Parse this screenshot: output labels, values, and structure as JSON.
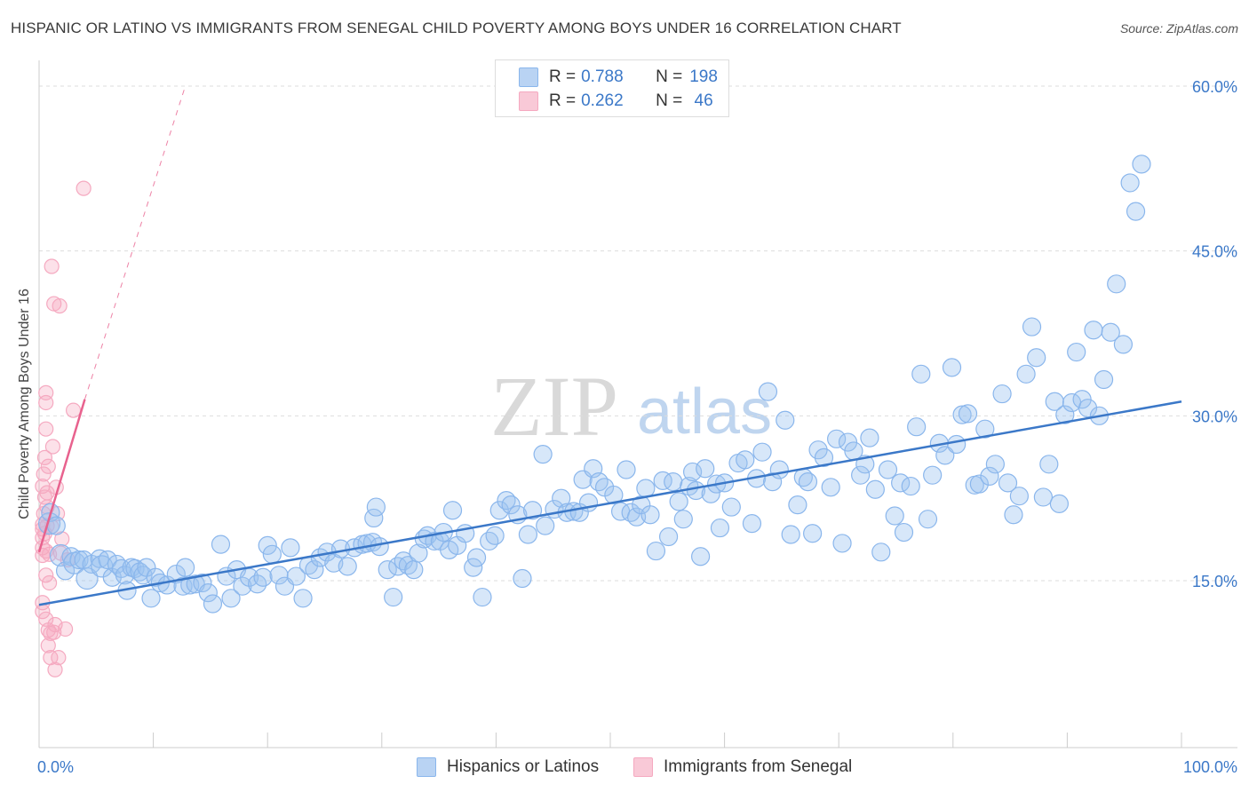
{
  "title": "HISPANIC OR LATINO VS IMMIGRANTS FROM SENEGAL CHILD POVERTY AMONG BOYS UNDER 16 CORRELATION CHART",
  "source": "Source: ZipAtlas.com",
  "watermark": {
    "zip": "ZIP",
    "atlas": "atlas"
  },
  "legend": {
    "rows": [
      {
        "r_label": "R = ",
        "r_value": "0.788",
        "n_label": "N = ",
        "n_value": "198",
        "color": "#8ab6ec"
      },
      {
        "r_label": "R = ",
        "r_value": "0.262",
        "n_label": "N = ",
        "n_value": " 46",
        "color": "#f5a9c0"
      }
    ]
  },
  "bottom_legend": {
    "blue": "Hispanics or Latinos",
    "pink": "Immigrants from Senegal"
  },
  "colors": {
    "blue": "#3b78c8",
    "blue_fill": "#9cc3f0",
    "pink": "#e8628e",
    "pink_fill": "#f5a9c0",
    "axis_label": "#3b78c8",
    "grid": "#dddddd"
  },
  "chart_data": {
    "type": "scatter",
    "title": "HISPANIC OR LATINO VS IMMIGRANTS FROM SENEGAL CHILD POVERTY AMONG BOYS UNDER 16 CORRELATION CHART",
    "xlabel": "",
    "ylabel": "Child Poverty Among Boys Under 16",
    "xlim": [
      0,
      100
    ],
    "ylim": [
      0,
      60
    ],
    "x_tick_labels": [
      "0.0%",
      "100.0%"
    ],
    "y_ticks": [
      15,
      30,
      45,
      60
    ],
    "y_tick_labels": [
      "15.0%",
      "30.0%",
      "45.0%",
      "60.0%"
    ],
    "grid": "horizontal dashed",
    "legend_placement": "top-center",
    "series": [
      {
        "name": "Hispanics or Latinos",
        "R": 0.788,
        "N": 198,
        "trend": {
          "x": [
            0,
            100
          ],
          "y": [
            12.8,
            31.3
          ]
        },
        "points": [
          [
            0.9,
            20.2
          ],
          [
            1.0,
            21.2
          ],
          [
            1.5,
            20.0
          ],
          [
            1.9,
            17.3
          ],
          [
            2.3,
            15.9
          ],
          [
            2.8,
            17.2
          ],
          [
            3.1,
            16.6
          ],
          [
            3.5,
            16.9
          ],
          [
            3.9,
            16.9
          ],
          [
            4.2,
            15.2
          ],
          [
            4.6,
            16.5
          ],
          [
            5.3,
            17.0
          ],
          [
            5.5,
            16.3
          ],
          [
            6.0,
            16.9
          ],
          [
            6.4,
            15.3
          ],
          [
            6.8,
            16.5
          ],
          [
            7.2,
            16.1
          ],
          [
            7.5,
            15.5
          ],
          [
            7.7,
            14.1
          ],
          [
            8.1,
            16.2
          ],
          [
            8.4,
            16.1
          ],
          [
            8.8,
            15.8
          ],
          [
            9.1,
            15.5
          ],
          [
            9.4,
            16.2
          ],
          [
            9.8,
            13.4
          ],
          [
            10.2,
            15.3
          ],
          [
            10.6,
            14.8
          ],
          [
            11.2,
            14.6
          ],
          [
            12.0,
            15.6
          ],
          [
            12.6,
            14.5
          ],
          [
            12.8,
            16.2
          ],
          [
            13.2,
            14.6
          ],
          [
            13.7,
            14.7
          ],
          [
            14.3,
            14.8
          ],
          [
            14.8,
            13.9
          ],
          [
            15.2,
            12.9
          ],
          [
            15.9,
            18.3
          ],
          [
            16.4,
            15.4
          ],
          [
            16.8,
            13.4
          ],
          [
            17.3,
            16.0
          ],
          [
            17.8,
            14.5
          ],
          [
            18.4,
            15.3
          ],
          [
            19.1,
            14.7
          ],
          [
            19.6,
            15.3
          ],
          [
            20.0,
            18.2
          ],
          [
            20.4,
            17.4
          ],
          [
            21.0,
            15.5
          ],
          [
            21.5,
            14.5
          ],
          [
            22.0,
            18.0
          ],
          [
            22.5,
            15.4
          ],
          [
            23.1,
            13.4
          ],
          [
            23.6,
            16.4
          ],
          [
            24.1,
            16.0
          ],
          [
            24.6,
            17.1
          ],
          [
            25.2,
            17.6
          ],
          [
            25.8,
            16.6
          ],
          [
            26.4,
            17.9
          ],
          [
            27.0,
            16.3
          ],
          [
            27.6,
            18.0
          ],
          [
            28.3,
            18.3
          ],
          [
            28.7,
            18.4
          ],
          [
            29.2,
            18.5
          ],
          [
            29.3,
            20.7
          ],
          [
            29.5,
            21.7
          ],
          [
            29.8,
            18.1
          ],
          [
            30.5,
            16.0
          ],
          [
            31.0,
            13.5
          ],
          [
            31.4,
            16.3
          ],
          [
            31.9,
            16.8
          ],
          [
            32.3,
            16.4
          ],
          [
            32.8,
            16.0
          ],
          [
            33.2,
            17.5
          ],
          [
            33.7,
            18.8
          ],
          [
            34.0,
            19.1
          ],
          [
            34.6,
            18.6
          ],
          [
            35.1,
            18.6
          ],
          [
            35.4,
            19.4
          ],
          [
            35.9,
            17.8
          ],
          [
            36.2,
            21.4
          ],
          [
            36.6,
            18.2
          ],
          [
            37.3,
            19.3
          ],
          [
            38.0,
            16.2
          ],
          [
            38.3,
            17.1
          ],
          [
            38.8,
            13.5
          ],
          [
            39.4,
            18.6
          ],
          [
            39.9,
            19.1
          ],
          [
            40.3,
            21.4
          ],
          [
            40.9,
            22.3
          ],
          [
            41.3,
            21.9
          ],
          [
            41.9,
            21.0
          ],
          [
            42.3,
            15.2
          ],
          [
            42.8,
            19.2
          ],
          [
            43.2,
            21.4
          ],
          [
            44.1,
            26.5
          ],
          [
            44.3,
            20.0
          ],
          [
            45.1,
            21.5
          ],
          [
            45.7,
            22.5
          ],
          [
            46.2,
            21.2
          ],
          [
            46.8,
            21.3
          ],
          [
            47.3,
            21.2
          ],
          [
            47.6,
            24.2
          ],
          [
            48.1,
            22.1
          ],
          [
            48.5,
            25.2
          ],
          [
            49.0,
            24.0
          ],
          [
            49.5,
            23.5
          ],
          [
            50.3,
            22.8
          ],
          [
            50.9,
            21.3
          ],
          [
            51.4,
            25.1
          ],
          [
            51.8,
            21.2
          ],
          [
            52.3,
            20.8
          ],
          [
            52.7,
            21.9
          ],
          [
            53.1,
            23.4
          ],
          [
            53.5,
            21.0
          ],
          [
            54.0,
            17.7
          ],
          [
            54.6,
            24.1
          ],
          [
            55.1,
            19.0
          ],
          [
            55.5,
            24.0
          ],
          [
            56.0,
            22.2
          ],
          [
            56.4,
            20.6
          ],
          [
            56.9,
            23.6
          ],
          [
            57.2,
            24.9
          ],
          [
            57.5,
            23.2
          ],
          [
            57.9,
            17.2
          ],
          [
            58.3,
            25.2
          ],
          [
            58.8,
            22.9
          ],
          [
            59.3,
            23.8
          ],
          [
            59.6,
            19.8
          ],
          [
            60.0,
            23.9
          ],
          [
            60.6,
            21.7
          ],
          [
            61.2,
            25.7
          ],
          [
            61.8,
            26.0
          ],
          [
            62.4,
            20.2
          ],
          [
            62.8,
            24.3
          ],
          [
            63.3,
            26.7
          ],
          [
            63.8,
            32.2
          ],
          [
            64.2,
            24.0
          ],
          [
            64.8,
            25.1
          ],
          [
            65.3,
            29.6
          ],
          [
            65.8,
            19.2
          ],
          [
            66.4,
            21.9
          ],
          [
            66.9,
            24.4
          ],
          [
            67.3,
            24.0
          ],
          [
            67.7,
            19.3
          ],
          [
            68.2,
            26.9
          ],
          [
            68.7,
            26.2
          ],
          [
            69.3,
            23.5
          ],
          [
            69.8,
            27.9
          ],
          [
            70.3,
            18.4
          ],
          [
            70.8,
            27.6
          ],
          [
            71.3,
            26.8
          ],
          [
            71.9,
            24.6
          ],
          [
            72.3,
            25.6
          ],
          [
            72.7,
            28.0
          ],
          [
            73.2,
            23.3
          ],
          [
            73.7,
            17.6
          ],
          [
            74.3,
            25.1
          ],
          [
            74.9,
            20.9
          ],
          [
            75.4,
            23.9
          ],
          [
            75.7,
            19.4
          ],
          [
            76.3,
            23.6
          ],
          [
            76.8,
            29.0
          ],
          [
            77.2,
            33.8
          ],
          [
            77.8,
            20.6
          ],
          [
            78.2,
            24.6
          ],
          [
            78.8,
            27.5
          ],
          [
            79.3,
            26.4
          ],
          [
            79.9,
            34.4
          ],
          [
            80.3,
            27.4
          ],
          [
            80.8,
            30.1
          ],
          [
            81.3,
            30.2
          ],
          [
            81.9,
            23.7
          ],
          [
            82.3,
            23.8
          ],
          [
            82.8,
            28.8
          ],
          [
            83.2,
            24.5
          ],
          [
            83.7,
            25.6
          ],
          [
            84.3,
            32.0
          ],
          [
            84.8,
            23.9
          ],
          [
            85.3,
            21.0
          ],
          [
            85.8,
            22.7
          ],
          [
            86.4,
            33.8
          ],
          [
            86.9,
            38.1
          ],
          [
            87.3,
            35.3
          ],
          [
            87.9,
            22.6
          ],
          [
            88.4,
            25.6
          ],
          [
            88.9,
            31.3
          ],
          [
            89.3,
            22.0
          ],
          [
            89.8,
            30.1
          ],
          [
            90.4,
            31.2
          ],
          [
            90.8,
            35.8
          ],
          [
            91.3,
            31.5
          ],
          [
            91.8,
            30.7
          ],
          [
            92.3,
            37.8
          ],
          [
            92.8,
            30.0
          ],
          [
            93.2,
            33.3
          ],
          [
            93.8,
            37.6
          ],
          [
            94.3,
            42.0
          ],
          [
            94.9,
            36.5
          ],
          [
            95.5,
            51.2
          ],
          [
            96.0,
            48.6
          ],
          [
            96.5,
            52.9
          ]
        ]
      },
      {
        "name": "Immigrants from Senegal",
        "R": 0.262,
        "N": 46,
        "trend": {
          "x": [
            0,
            4
          ],
          "y": [
            17.6,
            31.5
          ]
        },
        "trend_dashed": {
          "x": [
            4,
            12.8
          ],
          "y": [
            31.5,
            60.0
          ]
        },
        "points": [
          [
            0.3,
            23.6
          ],
          [
            0.3,
            20.1
          ],
          [
            0.3,
            19.7
          ],
          [
            0.3,
            18.9
          ],
          [
            0.3,
            18.0
          ],
          [
            0.3,
            17.3
          ],
          [
            0.3,
            13.0
          ],
          [
            0.3,
            12.2
          ],
          [
            0.4,
            24.7
          ],
          [
            0.4,
            21.1
          ],
          [
            0.5,
            26.2
          ],
          [
            0.5,
            22.6
          ],
          [
            0.5,
            19.3
          ],
          [
            0.6,
            28.8
          ],
          [
            0.6,
            31.2
          ],
          [
            0.6,
            32.1
          ],
          [
            0.6,
            17.7
          ],
          [
            0.6,
            15.5
          ],
          [
            0.6,
            11.5
          ],
          [
            0.7,
            23.0
          ],
          [
            0.7,
            21.7
          ],
          [
            0.7,
            20.0
          ],
          [
            0.8,
            25.4
          ],
          [
            0.8,
            10.5
          ],
          [
            0.8,
            9.1
          ],
          [
            0.9,
            14.8
          ],
          [
            0.9,
            17.4
          ],
          [
            1.0,
            8.0
          ],
          [
            1.0,
            10.2
          ],
          [
            1.1,
            19.9
          ],
          [
            1.1,
            43.6
          ],
          [
            1.2,
            27.2
          ],
          [
            1.3,
            40.2
          ],
          [
            1.3,
            10.3
          ],
          [
            1.4,
            11.0
          ],
          [
            1.4,
            6.9
          ],
          [
            1.5,
            23.5
          ],
          [
            1.6,
            21.1
          ],
          [
            1.7,
            8.0
          ],
          [
            1.8,
            40.0
          ],
          [
            1.9,
            17.5
          ],
          [
            2.0,
            18.8
          ],
          [
            2.3,
            10.6
          ],
          [
            2.5,
            16.9
          ],
          [
            3.0,
            30.5
          ],
          [
            3.9,
            50.7
          ]
        ]
      }
    ]
  }
}
